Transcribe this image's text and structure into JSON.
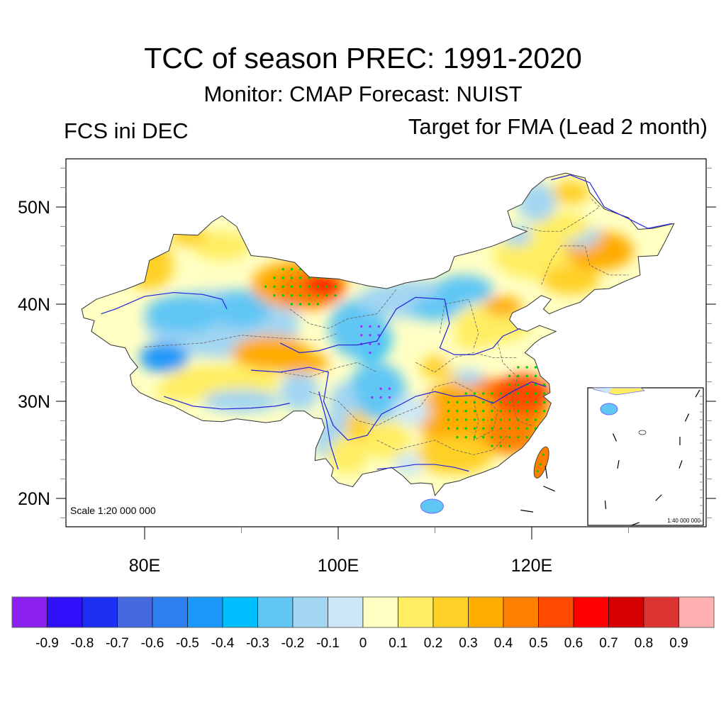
{
  "chart_data": {
    "type": "heatmap",
    "map_type": "filled contour map with significance stippling",
    "title": "TCC of season PREC: 1991-2020",
    "subtitle": "Monitor: CMAP   Forecast: NUIST",
    "left_string": "FCS ini DEC",
    "right_string": "Target for FMA (Lead 2 month)",
    "region": "China",
    "xlabel": "",
    "ylabel": "",
    "x_axis": {
      "unit": "longitude",
      "range": [
        72,
        138
      ],
      "ticks": [
        80,
        100,
        120
      ],
      "tick_labels": [
        "80E",
        "100E",
        "120E"
      ],
      "minor_step": 10
    },
    "y_axis": {
      "unit": "latitude",
      "range": [
        17,
        55
      ],
      "ticks": [
        20,
        30,
        40,
        50
      ],
      "tick_labels": [
        "20N",
        "30N",
        "40N",
        "50N"
      ],
      "minor_step": 2
    },
    "scale_label": "Scale 1:20 000 000",
    "inset": {
      "label": "1:40 000 000",
      "content": "South China Sea islands"
    },
    "grid": false,
    "legend": {
      "placement": "bottom",
      "type": "labelbar",
      "levels": [
        -0.9,
        -0.8,
        -0.7,
        -0.6,
        -0.5,
        -0.4,
        -0.3,
        -0.2,
        -0.1,
        0,
        0.1,
        0.2,
        0.3,
        0.4,
        0.5,
        0.6,
        0.7,
        0.8,
        0.9
      ],
      "labels": [
        "-0.9",
        "-0.8",
        "-0.7",
        "-0.6",
        "-0.5",
        "-0.4",
        "-0.3",
        "-0.2",
        "-0.1",
        "0",
        "0.1",
        "0.2",
        "0.3",
        "0.4",
        "0.5",
        "0.6",
        "0.7",
        "0.8",
        "0.9"
      ],
      "colors": [
        "#8a1ff0",
        "#3010fa",
        "#1c2ff2",
        "#4468e0",
        "#2c80f0",
        "#1a98fa",
        "#00bfff",
        "#60c6f4",
        "#a2d6f2",
        "#cce8f6",
        "#ffffc4",
        "#ffee62",
        "#ffd025",
        "#ffab00",
        "#ff8000",
        "#ff4a00",
        "#ff0000",
        "#d60000",
        "#dc3333",
        "#ffb0b0"
      ]
    },
    "stippling": {
      "positive_significant_color": "#00cc00",
      "negative_significant_color": "#9933ff",
      "regions": [
        {
          "name": "Northern Xinjiang / Junggar",
          "sign": "positive"
        },
        {
          "name": "Yangtze River lower reaches / Southeast China",
          "sign": "positive"
        },
        {
          "name": "Taiwan",
          "sign": "positive"
        },
        {
          "name": "Gansu / Ningxia",
          "sign": "negative"
        },
        {
          "name": "Sichuan Basin",
          "sign": "negative"
        }
      ]
    },
    "field_regions": [
      {
        "name": "Northern Xinjiang",
        "lon": 96,
        "lat": 42.5,
        "value": 0.55
      },
      {
        "name": "Tarim Basin",
        "lon": 84,
        "lat": 39,
        "value": -0.2
      },
      {
        "name": "Western Tibet",
        "lon": 82,
        "lat": 35,
        "value": -0.4
      },
      {
        "name": "Qaidam / Qinghai",
        "lon": 94,
        "lat": 35,
        "value": 0.35
      },
      {
        "name": "Southern Tibet",
        "lon": 88,
        "lat": 31,
        "value": 0.15
      },
      {
        "name": "Gansu / Ningxia",
        "lon": 103,
        "lat": 36.5,
        "value": -0.4
      },
      {
        "name": "Sichuan Basin",
        "lon": 105,
        "lat": 30.5,
        "value": -0.4
      },
      {
        "name": "Inner Mongolia",
        "lon": 110,
        "lat": 41,
        "value": -0.2
      },
      {
        "name": "North China Plain",
        "lon": 114,
        "lat": 37,
        "value": 0.15
      },
      {
        "name": "Yangtze lower reaches",
        "lon": 119,
        "lat": 30.5,
        "value": 0.55
      },
      {
        "name": "Southeast China",
        "lon": 116,
        "lat": 27,
        "value": 0.4
      },
      {
        "name": "South China",
        "lon": 112,
        "lat": 24,
        "value": 0.3
      },
      {
        "name": "Yunnan",
        "lon": 101,
        "lat": 24,
        "value": 0.2
      },
      {
        "name": "Northeast China",
        "lon": 125,
        "lat": 45,
        "value": 0.25
      },
      {
        "name": "Heilongjiang north",
        "lon": 124,
        "lat": 51,
        "value": 0.15
      },
      {
        "name": "Hainan",
        "lon": 109.7,
        "lat": 19.2,
        "value": -0.3
      },
      {
        "name": "Taiwan",
        "lon": 121,
        "lat": 23.7,
        "value": 0.45
      }
    ]
  }
}
